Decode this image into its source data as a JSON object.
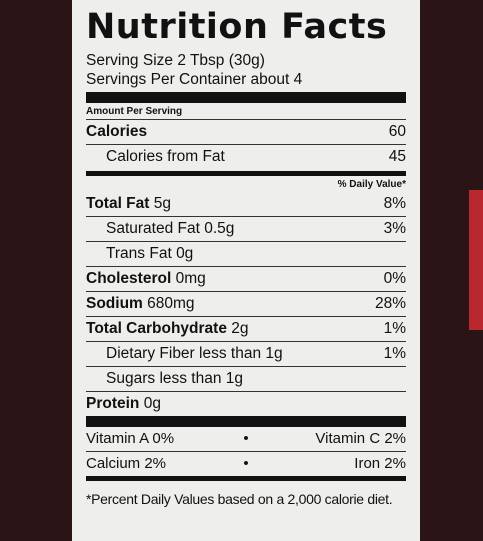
{
  "title": "Nutrition Facts",
  "serving_size": "Serving Size 2 Tbsp (30g)",
  "servings_per_container": "Servings Per Container about 4",
  "amount_per_serving": "Amount Per Serving",
  "calories": {
    "label": "Calories",
    "value": "60"
  },
  "calories_from_fat": {
    "label": "Calories from Fat",
    "value": "45"
  },
  "daily_value_header": "% Daily Value*",
  "nutrients": [
    {
      "label": "Total Fat",
      "amount": "5g",
      "dv": "8%"
    },
    {
      "label": "Saturated Fat",
      "amount": "0.5g",
      "dv": "3%"
    },
    {
      "label": "Trans Fat",
      "amount": "0g",
      "dv": ""
    },
    {
      "label": "Cholesterol",
      "amount": "0mg",
      "dv": "0%"
    },
    {
      "label": "Sodium",
      "amount": "680mg",
      "dv": "28%"
    },
    {
      "label": "Total Carbohydrate",
      "amount": "2g",
      "dv": "1%"
    },
    {
      "label": "Dietary Fiber",
      "amount": "less than 1g",
      "dv": "1%"
    },
    {
      "label": "Sugars",
      "amount": "less than 1g",
      "dv": ""
    },
    {
      "label": "Protein",
      "amount": "0g",
      "dv": ""
    }
  ],
  "vitamins": [
    {
      "left": "Vitamin A 0%",
      "dot": "•",
      "right": "Vitamin C 2%"
    },
    {
      "left": "Calcium 2%",
      "dot": "•",
      "right": "Iron 2%"
    }
  ],
  "footnote": "*Percent Daily Values based on a 2,000 calorie diet.",
  "colors": {
    "label_bg": "#eeeeec",
    "package_dark": "#2a1416",
    "package_red": "#b8282e",
    "ink": "#111111"
  }
}
